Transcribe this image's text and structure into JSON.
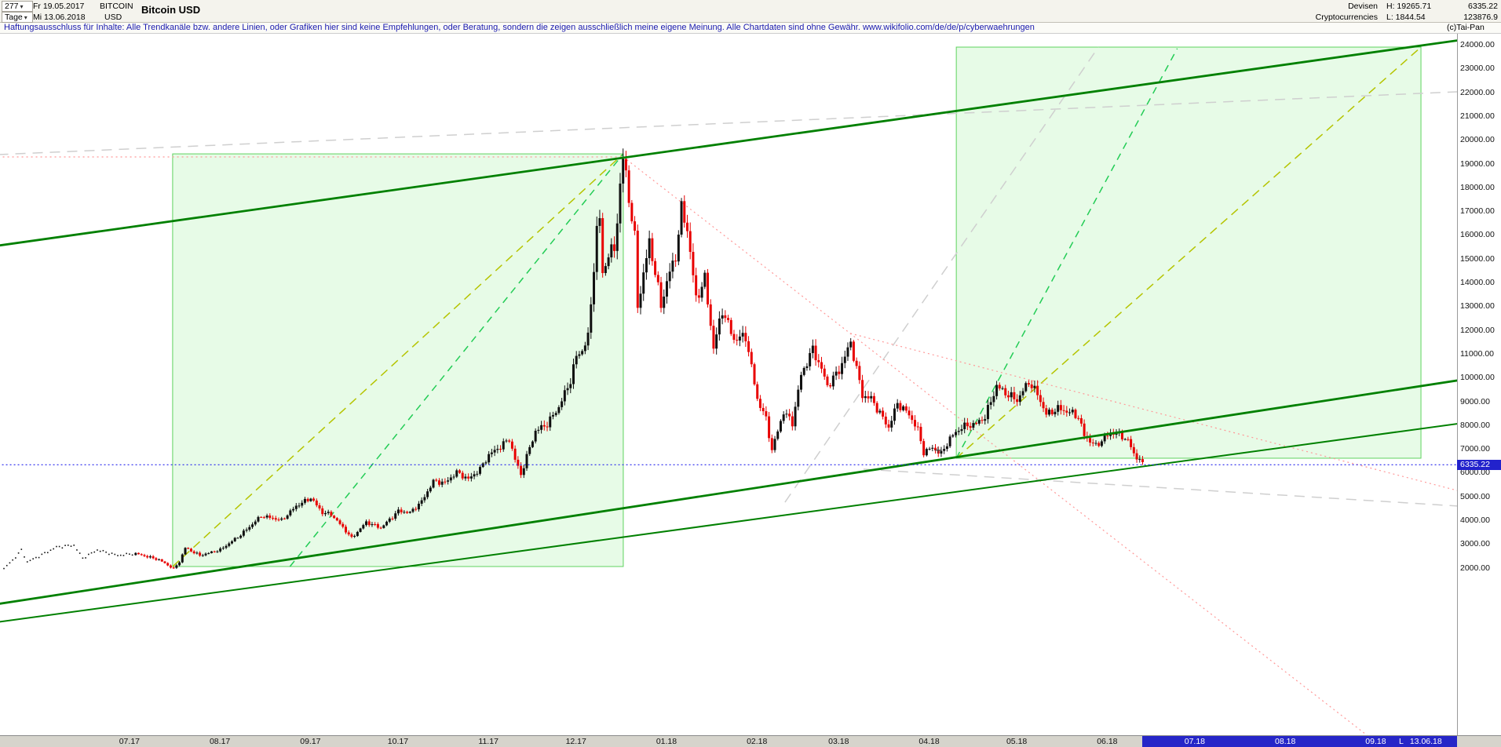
{
  "icons": {
    "chevron_down": "▾"
  },
  "header": {
    "bars_count": "277",
    "timeframe": "Tage",
    "date_from": "Fr 19.05.2017",
    "date_to": "Mi 13.06.2018",
    "symbol": "BITCOIN",
    "currency": "USD",
    "title": "Bitcoin USD",
    "category_line1": "Devisen",
    "category_line2": "Cryptocurrencies",
    "high_label": "H: 19265.71",
    "low_label": "L: 1844.54",
    "last_price": "6335.22",
    "volume": "123876.9"
  },
  "disclaimer": {
    "text": "Haftungsausschluss für Inhalte: Alle Trendkanäle bzw. andere Linien, oder Grafiken hier sind keine Empfehlungen, oder Beratung, sondern die zeigen ausschließlich meine eigene Meinung. Alle Chartdaten sind ohne Gewähr.  ",
    "url": "www.wikifolio.com/de/de/p/cyberwaehrungen",
    "copyright": "(c)Tai-Pan"
  },
  "price_marker": {
    "value": "6335.22",
    "color": "#2222cc"
  },
  "bottom_bar": {
    "future_start_day": 390,
    "end_label_l": "L",
    "end_label_date": "13.06.18"
  },
  "chart_data": {
    "type": "candlestick",
    "title": "Bitcoin USD",
    "timeframe": "Tage",
    "period_from": "19.05.2017",
    "period_to": "13.06.2018",
    "period_high": 19265.71,
    "period_low": 1844.54,
    "last_close": 6335.22,
    "days": 390,
    "dotted_history_days": 45,
    "volatility": 0.042,
    "colors": {
      "up": "#101010",
      "down": "#e80000"
    },
    "y_axis": {
      "unit": "USD",
      "min": 2000,
      "max": 24000,
      "step": 1000,
      "labels": [
        "24000.00",
        "23000.00",
        "22000.00",
        "21000.00",
        "20000.00",
        "19000.00",
        "18000.00",
        "17000.00",
        "16000.00",
        "15000.00",
        "14000.00",
        "13000.00",
        "12000.00",
        "11000.00",
        "10000.00",
        "9000.00",
        "8000.00",
        "7000.00",
        "6000.00",
        "5000.00",
        "4000.00",
        "3000.00",
        "2000.00"
      ]
    },
    "x_axis": {
      "months": [
        {
          "label": "07.17",
          "day": 43
        },
        {
          "label": "08.17",
          "day": 74
        },
        {
          "label": "09.17",
          "day": 105
        },
        {
          "label": "10.17",
          "day": 135
        },
        {
          "label": "11.17",
          "day": 166
        },
        {
          "label": "12.17",
          "day": 196
        },
        {
          "label": "01.18",
          "day": 227
        },
        {
          "label": "02.18",
          "day": 258
        },
        {
          "label": "03.18",
          "day": 286
        },
        {
          "label": "04.18",
          "day": 317
        },
        {
          "label": "05.18",
          "day": 347
        },
        {
          "label": "06.18",
          "day": 378
        },
        {
          "label": "07.18",
          "day": 408
        },
        {
          "label": "08.18",
          "day": 439
        },
        {
          "label": "09.18",
          "day": 470
        }
      ]
    },
    "price_path": [
      [
        0,
        1970
      ],
      [
        3,
        2320
      ],
      [
        6,
        2740
      ],
      [
        8,
        2250
      ],
      [
        12,
        2480
      ],
      [
        18,
        2870
      ],
      [
        24,
        2950
      ],
      [
        27,
        2400
      ],
      [
        32,
        2750
      ],
      [
        39,
        2520
      ],
      [
        45,
        2600
      ],
      [
        53,
        2340
      ],
      [
        58,
        1960
      ],
      [
        60,
        2260
      ],
      [
        62,
        2840
      ],
      [
        67,
        2520
      ],
      [
        74,
        2760
      ],
      [
        81,
        3390
      ],
      [
        88,
        4180
      ],
      [
        92,
        4090
      ],
      [
        95,
        4000
      ],
      [
        100,
        4600
      ],
      [
        105,
        4940
      ],
      [
        109,
        4320
      ],
      [
        112,
        4250
      ],
      [
        116,
        3700
      ],
      [
        119,
        3250
      ],
      [
        124,
        3920
      ],
      [
        129,
        3680
      ],
      [
        135,
        4390
      ],
      [
        139,
        4320
      ],
      [
        143,
        4790
      ],
      [
        147,
        5640
      ],
      [
        151,
        5580
      ],
      [
        155,
        6020
      ],
      [
        159,
        5730
      ],
      [
        163,
        6150
      ],
      [
        166,
        6750
      ],
      [
        170,
        7100
      ],
      [
        173,
        7420
      ],
      [
        175,
        6550
      ],
      [
        177,
        5920
      ],
      [
        180,
        7050
      ],
      [
        182,
        7750
      ],
      [
        186,
        8050
      ],
      [
        190,
        8760
      ],
      [
        194,
        9890
      ],
      [
        196,
        10900
      ],
      [
        198,
        11150
      ],
      [
        200,
        11680
      ],
      [
        203,
        16150
      ],
      [
        204,
        16700
      ],
      [
        205,
        14400
      ],
      [
        207,
        15150
      ],
      [
        209,
        15450
      ],
      [
        212,
        19200
      ],
      [
        213,
        18650
      ],
      [
        214,
        17500
      ],
      [
        216,
        15850
      ],
      [
        217,
        13050
      ],
      [
        219,
        14300
      ],
      [
        221,
        15750
      ],
      [
        223,
        14400
      ],
      [
        225,
        13050
      ],
      [
        228,
        14450
      ],
      [
        230,
        15100
      ],
      [
        232,
        17080
      ],
      [
        234,
        16250
      ],
      [
        237,
        13300
      ],
      [
        240,
        14150
      ],
      [
        243,
        11250
      ],
      [
        246,
        12850
      ],
      [
        250,
        11600
      ],
      [
        254,
        11750
      ],
      [
        258,
        9100
      ],
      [
        261,
        8250
      ],
      [
        263,
        6950
      ],
      [
        265,
        7750
      ],
      [
        267,
        8570
      ],
      [
        270,
        8100
      ],
      [
        273,
        10100
      ],
      [
        277,
        11200
      ],
      [
        280,
        10350
      ],
      [
        282,
        9650
      ],
      [
        286,
        10300
      ],
      [
        290,
        11480
      ],
      [
        294,
        9250
      ],
      [
        297,
        9120
      ],
      [
        300,
        8500
      ],
      [
        303,
        7900
      ],
      [
        306,
        8920
      ],
      [
        310,
        8450
      ],
      [
        313,
        7800
      ],
      [
        315,
        6860
      ],
      [
        318,
        7050
      ],
      [
        321,
        6790
      ],
      [
        324,
        7450
      ],
      [
        328,
        7920
      ],
      [
        333,
        8060
      ],
      [
        336,
        8350
      ],
      [
        340,
        9650
      ],
      [
        343,
        9350
      ],
      [
        347,
        9050
      ],
      [
        351,
        9830
      ],
      [
        354,
        9300
      ],
      [
        357,
        8450
      ],
      [
        361,
        8700
      ],
      [
        364,
        8580
      ],
      [
        366,
        8500
      ],
      [
        368,
        8350
      ],
      [
        370,
        7560
      ],
      [
        374,
        7120
      ],
      [
        377,
        7480
      ],
      [
        380,
        7700
      ],
      [
        383,
        7520
      ],
      [
        385,
        7360
      ],
      [
        387,
        6780
      ],
      [
        389,
        6550
      ],
      [
        390,
        6335
      ]
    ],
    "overlays": {
      "boxes": [
        {
          "name": "projection-box-1",
          "day_from": 57.8,
          "day_to": 212.2,
          "price_from": 2055,
          "price_to": 19410,
          "fill": "rgba(170,240,170,0.28)",
          "border": "#5fd35f"
        },
        {
          "name": "projection-box-2",
          "day_from": 326.3,
          "day_to": 485.5,
          "price_from": 6610,
          "price_to": 23900,
          "fill": "rgba(170,240,170,0.28)",
          "border": "#5fd35f"
        }
      ],
      "trend_lines": [
        {
          "name": "old-channel-gray-1",
          "color": "#cfcfcf",
          "width": 1.5,
          "dash": "13,9",
          "from": [
            -2,
            19380
          ],
          "to": [
            498,
            22020
          ],
          "above": false
        },
        {
          "name": "old-trend-gray-2",
          "color": "#cfcfcf",
          "width": 1.5,
          "dash": "13,9",
          "from": [
            267.6,
            4760
          ],
          "to": [
            375,
            23900
          ],
          "above": false
        },
        {
          "name": "old-trend-gray-3",
          "color": "#cfcfcf",
          "width": 1.5,
          "dash": "13,9",
          "from": [
            294.5,
            6150
          ],
          "to": [
            498,
            4600
          ],
          "above": false
        },
        {
          "name": "fan-yellow-1",
          "color": "#b5c400",
          "width": 1.5,
          "dash": "11,7",
          "from": [
            57.8,
            2055
          ],
          "to": [
            212.2,
            19410
          ],
          "above": false
        },
        {
          "name": "fan-yellow-2",
          "color": "#b5c400",
          "width": 1.5,
          "dash": "11,7",
          "from": [
            326.3,
            6610
          ],
          "to": [
            485.5,
            23900
          ],
          "above": false
        },
        {
          "name": "fan-green-1",
          "color": "#22cc55",
          "width": 1.5,
          "dash": "9,7",
          "from": [
            98,
            2055
          ],
          "to": [
            212.2,
            19410
          ],
          "above": false
        },
        {
          "name": "fan-green-2",
          "color": "#22cc55",
          "width": 1.5,
          "dash": "9,7",
          "from": [
            326.3,
            6610
          ],
          "to": [
            402,
            23840
          ],
          "above": false
        },
        {
          "name": "resistance-pink-1",
          "color": "#ff9898",
          "width": 1.2,
          "dash": "2,4",
          "from": [
            212.2,
            19280
          ],
          "to": [
            467,
            -5040
          ],
          "above": false
        },
        {
          "name": "resistance-pink-2",
          "color": "#ff9898",
          "width": 1.2,
          "dash": "2,4",
          "from": [
            290,
            11860
          ],
          "to": [
            498,
            5250
          ],
          "above": false
        },
        {
          "name": "peak-level-pink",
          "color": "#ff9898",
          "width": 1.2,
          "dash": "2,4",
          "from": [
            -2,
            19280
          ],
          "to": [
            212.2,
            19280
          ],
          "above": false
        },
        {
          "name": "upper-channel",
          "color": "#008000",
          "width": 2.8,
          "dash": null,
          "from": [
            -2,
            15550
          ],
          "to": [
            498,
            24180
          ],
          "above": true
        },
        {
          "name": "lower-channel",
          "color": "#008000",
          "width": 2.8,
          "dash": null,
          "from": [
            -2,
            480
          ],
          "to": [
            498,
            9880
          ],
          "above": true
        },
        {
          "name": "lower-channel-2",
          "color": "#008000",
          "width": 2,
          "dash": null,
          "from": [
            -2,
            -280
          ],
          "to": [
            498,
            8060
          ],
          "above": true
        },
        {
          "name": "current-price-line",
          "color": "#2222ee",
          "width": 1.2,
          "dash": "2,3",
          "from": [
            -2,
            6335.22
          ],
          "to": [
            498,
            6335.22
          ],
          "above": true
        }
      ]
    },
    "markers": [
      {
        "day": 320,
        "price": 6950,
        "color": "#444444"
      }
    ]
  }
}
